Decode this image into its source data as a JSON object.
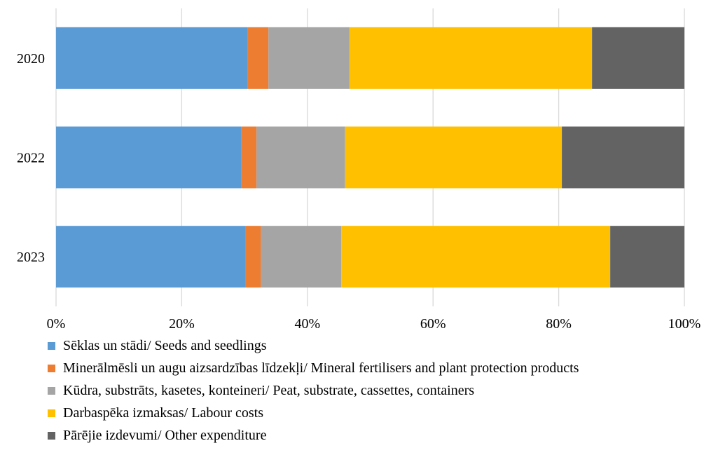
{
  "chart_data": {
    "type": "bar",
    "orientation": "horizontal",
    "stacked": "percent",
    "categories": [
      "2020",
      "2022",
      "2023"
    ],
    "series": [
      {
        "name": "Sēklas un stādi/ Seeds and seedlings",
        "color": "#5B9BD5",
        "values": [
          30.5,
          29.5,
          30.2
        ]
      },
      {
        "name": "Minerālmēsli un augu aizsardzības līdzekļi/ Mineral fertilisers and plant protection products",
        "color": "#ED7D31",
        "values": [
          3.3,
          2.4,
          2.4
        ]
      },
      {
        "name": "Kūdra, substrāts, kasetes, konteineri/ Peat, substrate, cassettes, containers",
        "color": "#A5A5A5",
        "values": [
          12.9,
          14.1,
          12.8
        ]
      },
      {
        "name": "Darbaspēka izmaksas/ Labour costs",
        "color": "#FFC000",
        "values": [
          38.6,
          34.5,
          42.8
        ]
      },
      {
        "name": "Pārējie izdevumi/ Other expenditure",
        "color": "#636363",
        "values": [
          14.7,
          19.5,
          11.8
        ]
      }
    ],
    "xlim": [
      0,
      100
    ],
    "x_ticks": [
      "0%",
      "20%",
      "40%",
      "60%",
      "80%",
      "100%"
    ],
    "grid": true,
    "legend_position": "bottom"
  }
}
